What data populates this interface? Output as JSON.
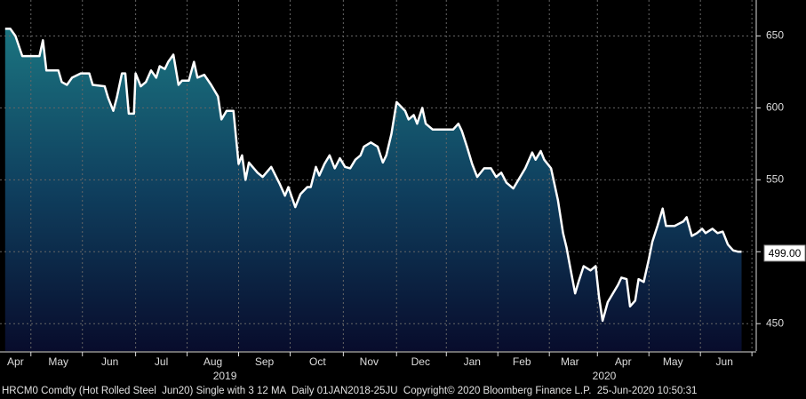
{
  "chart_data": {
    "type": "area",
    "series": [
      {
        "name": "HRCM0 Comdty",
        "color": "#ffffff",
        "x": [
          3,
          6,
          9,
          13,
          23,
          25,
          27,
          34,
          36,
          39,
          42,
          47,
          52,
          54,
          61,
          63,
          66,
          68,
          71,
          73,
          75,
          78,
          79,
          82,
          85,
          88,
          91,
          93,
          96,
          98,
          101,
          104,
          106,
          110,
          113,
          115,
          119,
          123,
          127,
          129,
          132,
          136,
          139,
          141,
          143,
          145,
          150,
          153,
          158,
          163,
          166,
          168,
          172,
          175,
          179,
          181,
          184,
          186,
          189,
          192,
          195,
          198,
          201,
          204,
          207,
          210,
          212,
          216,
          220,
          223,
          225,
          228,
          231,
          236,
          238,
          241,
          243,
          246,
          248,
          252,
          256,
          264,
          267,
          269,
          272,
          275,
          278,
          282,
          286,
          289,
          292,
          295,
          299,
          303,
          306,
          310,
          312,
          315,
          317,
          321,
          325,
          328,
          330,
          332,
          335,
          337,
          340,
          344,
          347,
          349,
          351,
          354,
          357,
          360,
          362,
          365,
          367,
          370,
          372,
          375,
          378,
          380,
          383,
          386,
          388,
          393,
          398,
          400,
          403,
          406,
          409,
          411,
          415,
          418,
          421,
          424,
          427,
          430,
          432
        ],
        "values": [
          655,
          655,
          650,
          636,
          636,
          647,
          626,
          626,
          618,
          616,
          621,
          624,
          624,
          616,
          615,
          607,
          598,
          607,
          624,
          624,
          596,
          596,
          624,
          615,
          618,
          626,
          621,
          629,
          627,
          632,
          637,
          616,
          619,
          619,
          632,
          621,
          623,
          616,
          608,
          592,
          598,
          598,
          561,
          567,
          550,
          562,
          555,
          552,
          559,
          547,
          539,
          545,
          531,
          540,
          545,
          545,
          559,
          553,
          561,
          567,
          558,
          565,
          559,
          558,
          564,
          567,
          573,
          576,
          573,
          562,
          567,
          582,
          604,
          598,
          592,
          595,
          589,
          600,
          589,
          585,
          585,
          585,
          589,
          584,
          573,
          561,
          552,
          558,
          558,
          552,
          555,
          548,
          544,
          552,
          558,
          569,
          564,
          570,
          564,
          558,
          536,
          513,
          503,
          490,
          471,
          479,
          490,
          487,
          490,
          468,
          452,
          465,
          471,
          477,
          482,
          481,
          462,
          466,
          481,
          479,
          495,
          507,
          518,
          530,
          518,
          518,
          521,
          524,
          511,
          513,
          516,
          513,
          516,
          513,
          514,
          505,
          501,
          500,
          500
        ]
      }
    ],
    "last_value": {
      "value": 499,
      "label": "499.00"
    },
    "xlim": [
      0,
      440
    ],
    "xticks": [
      {
        "value": 9,
        "label": "Apr"
      },
      {
        "value": 34,
        "label": "May"
      },
      {
        "value": 64,
        "label": "Jun"
      },
      {
        "value": 94,
        "label": "Jul"
      },
      {
        "value": 124,
        "label": "Aug"
      },
      {
        "value": 154,
        "label": "Sep"
      },
      {
        "value": 185,
        "label": "Oct"
      },
      {
        "value": 215,
        "label": "Nov"
      },
      {
        "value": 245,
        "label": "Dec"
      },
      {
        "value": 275,
        "label": "Jan"
      },
      {
        "value": 304,
        "label": "Feb"
      },
      {
        "value": 332,
        "label": "Mar"
      },
      {
        "value": 363,
        "label": "Apr"
      },
      {
        "value": 392,
        "label": "May"
      },
      {
        "value": 422,
        "label": "Jun"
      }
    ],
    "xgrid": [
      18,
      48,
      79,
      109,
      139,
      169,
      200,
      231,
      260,
      290,
      320,
      348,
      378,
      408,
      438
    ],
    "year_labels": [
      {
        "value": 131,
        "label": "2019"
      },
      {
        "value": 352,
        "label": "2020"
      }
    ],
    "ylim": [
      431,
      675
    ],
    "yticks": [
      450,
      500,
      550,
      600,
      650
    ],
    "grid": true,
    "footer": "HRCM0 Comdty (Hot Rolled Steel  Jun20) Single with 3 12 MA  Daily 01JAN2018-25JU  Copyright© 2020 Bloomberg Finance L.P.  25-Jun-2020 10:50:31"
  }
}
